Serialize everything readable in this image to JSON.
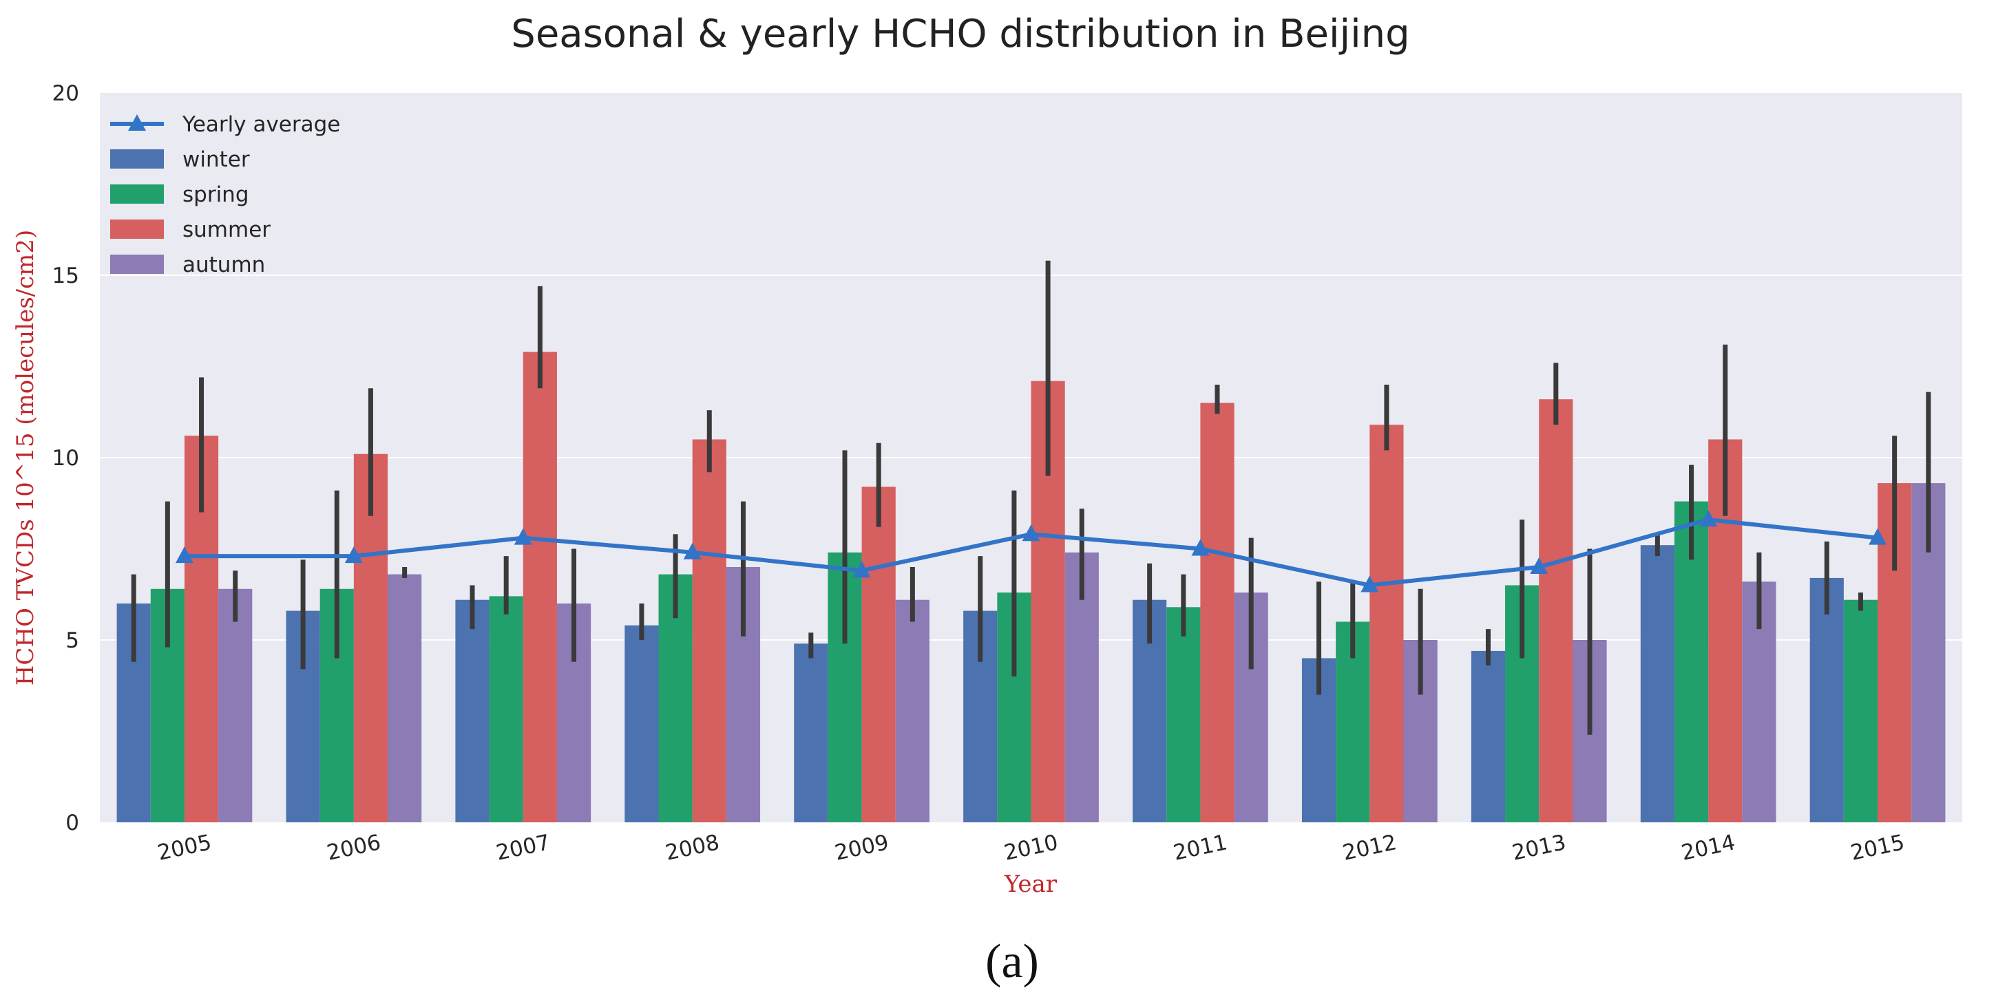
{
  "chart_data": {
    "type": "bar",
    "title": "Seasonal & yearly HCHO distribution in Beijing",
    "xlabel": "Year",
    "ylabel": "HCHO TVCDs 10^15 (molecules/cm2)",
    "caption": "(a)",
    "ylim": [
      0,
      20
    ],
    "yticks": [
      0,
      5,
      10,
      15,
      20
    ],
    "grid": true,
    "legend_position": "top-left",
    "categories": [
      "2005",
      "2006",
      "2007",
      "2008",
      "2009",
      "2010",
      "2011",
      "2012",
      "2013",
      "2014",
      "2015"
    ],
    "series": [
      {
        "name": "winter",
        "kind": "bar",
        "color": "#4c72b0",
        "values": [
          6.0,
          5.8,
          6.1,
          5.4,
          4.9,
          5.8,
          6.1,
          4.5,
          4.7,
          7.6,
          6.7
        ],
        "error_low": [
          4.4,
          4.2,
          5.3,
          5.0,
          4.5,
          4.4,
          4.9,
          3.5,
          4.3,
          7.3,
          5.7
        ],
        "error_high": [
          6.8,
          7.2,
          6.5,
          6.0,
          5.2,
          7.3,
          7.1,
          6.6,
          5.3,
          7.9,
          7.7
        ]
      },
      {
        "name": "spring",
        "kind": "bar",
        "color": "#22a06b",
        "values": [
          6.4,
          6.4,
          6.2,
          6.8,
          7.4,
          6.3,
          5.9,
          5.5,
          6.5,
          8.8,
          6.1
        ],
        "error_low": [
          4.8,
          4.5,
          5.7,
          5.6,
          4.9,
          4.0,
          5.1,
          4.5,
          4.5,
          7.2,
          5.8
        ],
        "error_high": [
          8.8,
          9.1,
          7.3,
          7.9,
          10.2,
          9.1,
          6.8,
          6.6,
          8.3,
          9.8,
          6.3
        ]
      },
      {
        "name": "summer",
        "kind": "bar",
        "color": "#d65f5f",
        "values": [
          10.6,
          10.1,
          12.9,
          10.5,
          9.2,
          12.1,
          11.5,
          10.9,
          11.6,
          10.5,
          9.3
        ],
        "error_low": [
          8.5,
          8.4,
          11.9,
          9.6,
          8.1,
          9.5,
          11.2,
          10.2,
          10.9,
          8.4,
          6.9
        ],
        "error_high": [
          12.2,
          11.9,
          14.7,
          11.3,
          10.4,
          15.4,
          12.0,
          12.0,
          12.6,
          13.1,
          10.6
        ]
      },
      {
        "name": "autumn",
        "kind": "bar",
        "color": "#8c7bb5",
        "values": [
          6.4,
          6.8,
          6.0,
          7.0,
          6.1,
          7.4,
          6.3,
          5.0,
          5.0,
          6.6,
          9.3
        ],
        "error_low": [
          5.5,
          6.7,
          4.4,
          5.1,
          5.5,
          6.1,
          4.2,
          3.5,
          2.4,
          5.3,
          7.4
        ],
        "error_high": [
          6.9,
          7.0,
          7.5,
          8.8,
          7.0,
          8.6,
          7.8,
          6.4,
          7.5,
          7.4,
          11.8
        ]
      },
      {
        "name": "Yearly average",
        "kind": "line",
        "color": "#3274c8",
        "values": [
          7.3,
          7.3,
          7.8,
          7.4,
          6.9,
          7.9,
          7.5,
          6.5,
          7.0,
          8.3,
          7.8
        ]
      }
    ],
    "legend": [
      "Yearly average",
      "winter",
      "spring",
      "summer",
      "autumn"
    ],
    "colors": {
      "plot_bg": "#eaeaf2",
      "grid": "#ffffff",
      "error_bar": "#3a3a3a",
      "ylabel": "#c0282d",
      "xlabel": "#c0282d"
    }
  }
}
